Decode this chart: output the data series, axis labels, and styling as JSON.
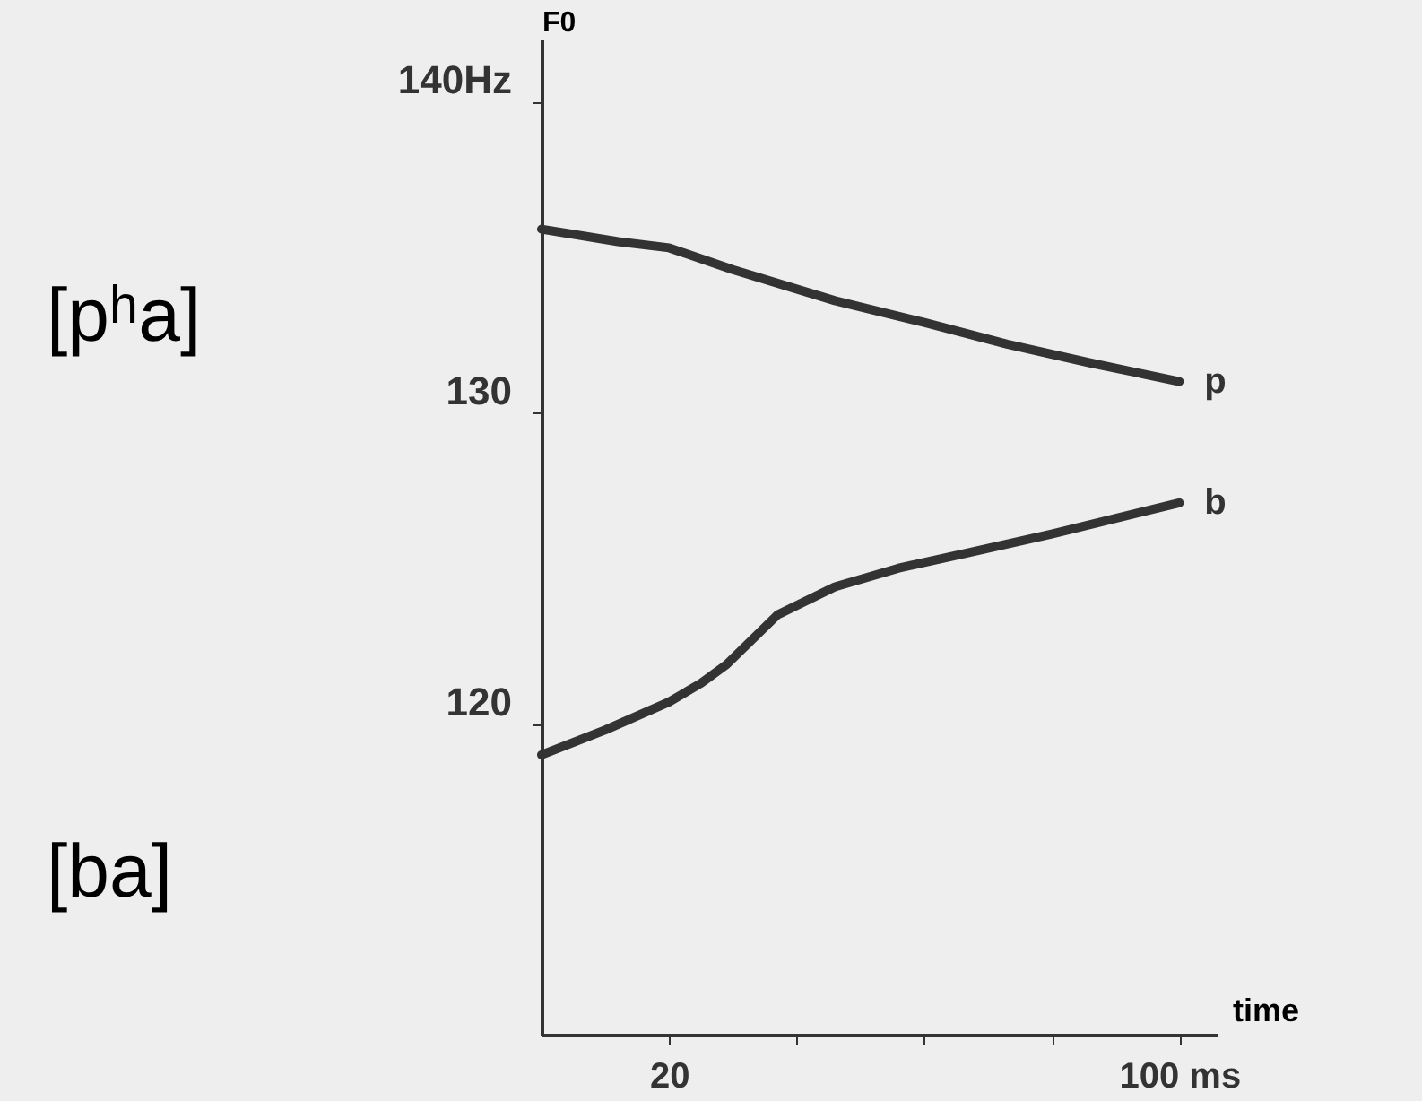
{
  "chart_data": {
    "type": "line",
    "ylabel": "F0",
    "xlabel": "time",
    "xlim": [
      0,
      106
    ],
    "ylim": [
      110,
      142
    ],
    "xticks": [
      20,
      {
        "value": 40,
        "label": null
      },
      {
        "value": 60,
        "label": null
      },
      {
        "value": 80,
        "label": null
      },
      {
        "value": 100,
        "label": "100 ms"
      }
    ],
    "yticks": [
      120,
      130,
      {
        "value": 140,
        "label": "140Hz"
      }
    ],
    "grid": false,
    "legend": false,
    "marker": "none",
    "line_style": "solid",
    "series": [
      {
        "name": "p",
        "color": "#333333",
        "x": [
          0,
          12,
          20,
          30,
          46,
          60,
          73,
          86,
          100
        ],
        "values": [
          135.9,
          135.5,
          135.3,
          134.6,
          133.6,
          132.9,
          132.2,
          131.6,
          131.0
        ]
      },
      {
        "name": "b",
        "color": "#333333",
        "x": [
          0,
          10,
          20,
          25,
          29,
          33,
          37,
          46,
          56,
          67,
          80,
          100
        ],
        "values": [
          119.0,
          119.8,
          120.7,
          121.3,
          121.9,
          122.7,
          123.5,
          124.4,
          125.0,
          125.5,
          126.1,
          127.1
        ]
      }
    ],
    "annotations": [
      "[pʰa]",
      "[ba]"
    ]
  }
}
